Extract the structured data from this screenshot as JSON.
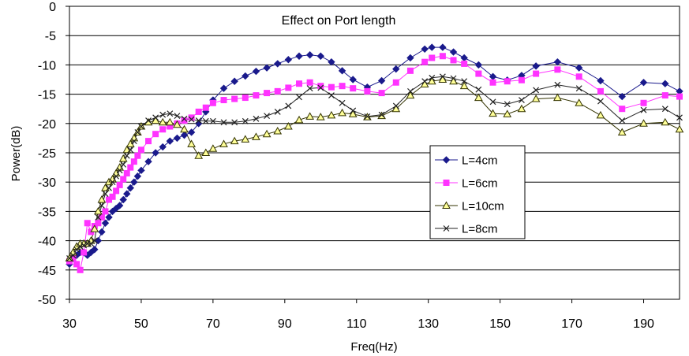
{
  "chart_data": {
    "type": "line",
    "title": "Effect on Port length",
    "xlabel": "Freq(Hz)",
    "ylabel": "Power(dB)",
    "xlim": [
      30,
      200
    ],
    "ylim": [
      -50,
      0
    ],
    "x_ticks": [
      "30",
      "50",
      "70",
      "90",
      "110",
      "130",
      "150",
      "170",
      "190"
    ],
    "y_ticks": [
      "0",
      "-5",
      "-10",
      "-15",
      "-20",
      "-25",
      "-30",
      "-35",
      "-40",
      "-45",
      "-50"
    ],
    "grid": "horizontal",
    "legend_position": "center-right",
    "series": [
      {
        "name": "L=4cm",
        "color": "#1a1a8c",
        "marker": "diamond",
        "x": [
          30,
          31,
          32,
          33,
          34,
          35,
          36,
          37,
          38,
          39,
          40,
          41,
          42,
          43,
          44,
          45,
          46,
          47,
          48,
          49,
          50,
          52,
          54,
          56,
          58,
          60,
          62,
          64,
          66,
          68,
          70,
          73,
          76,
          79,
          82,
          85,
          88,
          91,
          94,
          97,
          100,
          103,
          106,
          109,
          113,
          117,
          121,
          125,
          129,
          131,
          134,
          137,
          140,
          144,
          148,
          152,
          156,
          160,
          166,
          172,
          178,
          184,
          190,
          196,
          200
        ],
        "y": [
          -44,
          -43,
          -42.5,
          -42,
          -42,
          -42.5,
          -42,
          -41.5,
          -40,
          -38.5,
          -37,
          -36,
          -35,
          -34.5,
          -34,
          -33,
          -32,
          -31,
          -30,
          -29,
          -28,
          -26.5,
          -25,
          -24,
          -23,
          -22.5,
          -22,
          -21.5,
          -20,
          -18,
          -16,
          -14,
          -12.8,
          -11.9,
          -11.1,
          -10.5,
          -9.8,
          -9.1,
          -8.5,
          -8.3,
          -8.5,
          -9.5,
          -11,
          -12.5,
          -13.8,
          -12.7,
          -10.7,
          -8.8,
          -7.3,
          -7,
          -7,
          -7.8,
          -8.8,
          -10,
          -12,
          -12.6,
          -11.8,
          -10.2,
          -9.5,
          -10.5,
          -12.7,
          -15.4,
          -13,
          -13.2,
          -14.5
        ]
      },
      {
        "name": "L=6cm",
        "color": "#ff33ff",
        "marker": "square",
        "x": [
          30,
          31,
          32,
          33,
          34,
          35,
          36,
          37,
          38,
          39,
          40,
          41,
          42,
          43,
          44,
          45,
          46,
          47,
          48,
          49,
          50,
          52,
          54,
          56,
          58,
          60,
          62,
          64,
          66,
          68,
          70,
          73,
          76,
          79,
          82,
          85,
          88,
          91,
          94,
          97,
          100,
          103,
          106,
          109,
          113,
          117,
          121,
          125,
          129,
          131,
          134,
          137,
          140,
          144,
          148,
          152,
          156,
          160,
          166,
          172,
          178,
          184,
          190,
          196,
          200
        ],
        "y": [
          -43.5,
          -43,
          -44,
          -45,
          -42,
          -37,
          -38.5,
          -37.5,
          -37,
          -36,
          -35,
          -33,
          -32.5,
          -31.5,
          -30.5,
          -29.5,
          -28.5,
          -27.5,
          -26.5,
          -25.5,
          -24.5,
          -23,
          -21.8,
          -21,
          -20.5,
          -20,
          -19.5,
          -19,
          -18,
          -17.3,
          -16.5,
          -16,
          -15.8,
          -15.6,
          -15.2,
          -14.8,
          -14.5,
          -13.9,
          -13.2,
          -13,
          -13.6,
          -13.8,
          -13.6,
          -14,
          -14.5,
          -14.8,
          -13,
          -11,
          -9.5,
          -8.8,
          -8.5,
          -9.2,
          -9.8,
          -11.5,
          -13,
          -12.8,
          -12.6,
          -11.5,
          -10.8,
          -12,
          -14.5,
          -17.5,
          -16.5,
          -15.2,
          -15.4
        ]
      },
      {
        "name": "L=10cm",
        "color": "#333300",
        "marker": "triangle",
        "x": [
          30,
          31,
          32,
          33,
          34,
          35,
          36,
          37,
          38,
          39,
          40,
          41,
          42,
          43,
          44,
          45,
          46,
          47,
          48,
          49,
          50,
          52,
          54,
          56,
          58,
          60,
          62,
          64,
          66,
          68,
          70,
          73,
          76,
          79,
          82,
          85,
          88,
          91,
          94,
          97,
          100,
          103,
          106,
          109,
          113,
          117,
          121,
          125,
          129,
          131,
          134,
          137,
          140,
          144,
          148,
          152,
          156,
          160,
          166,
          172,
          178,
          184,
          190,
          196,
          200
        ],
        "y": [
          -43,
          -42,
          -41,
          -40.5,
          -40.5,
          -40.5,
          -40,
          -38,
          -35,
          -33,
          -31,
          -30,
          -29.5,
          -28.5,
          -27.5,
          -26,
          -24.5,
          -23.5,
          -22.5,
          -21.5,
          -20.5,
          -19.8,
          -19.5,
          -19.8,
          -19.8,
          -20.2,
          -21,
          -23.5,
          -25.5,
          -25,
          -24.3,
          -23.5,
          -23,
          -22.7,
          -22.3,
          -21.8,
          -21.3,
          -20.5,
          -19.4,
          -18.8,
          -18.9,
          -18.6,
          -18.2,
          -18.4,
          -18.9,
          -18.7,
          -17.5,
          -15.2,
          -13.3,
          -12.8,
          -12.5,
          -12.8,
          -13.6,
          -15.6,
          -18.3,
          -18.4,
          -17.5,
          -15.8,
          -15.6,
          -16.5,
          -18.6,
          -21.5,
          -20,
          -19.8,
          -21
        ]
      },
      {
        "name": "L=8cm",
        "color": "#222222",
        "marker": "x",
        "x": [
          30,
          31,
          32,
          33,
          34,
          35,
          36,
          37,
          38,
          39,
          40,
          41,
          42,
          43,
          44,
          45,
          46,
          47,
          48,
          49,
          50,
          52,
          54,
          56,
          58,
          60,
          62,
          64,
          66,
          68,
          70,
          73,
          76,
          79,
          82,
          85,
          88,
          91,
          94,
          97,
          100,
          103,
          106,
          109,
          113,
          117,
          121,
          125,
          129,
          131,
          134,
          137,
          140,
          144,
          148,
          152,
          156,
          160,
          166,
          172,
          178,
          184,
          190,
          196,
          200
        ],
        "y": [
          -43,
          -42.5,
          -41.5,
          -41,
          -40.8,
          -40.5,
          -40.5,
          -40,
          -36,
          -34,
          -32,
          -31,
          -30,
          -29,
          -28,
          -27,
          -25.5,
          -24.5,
          -23,
          -21.5,
          -20.5,
          -19.5,
          -19,
          -18.5,
          -18.3,
          -18.7,
          -19.2,
          -19.3,
          -19.5,
          -19.6,
          -19.6,
          -19.8,
          -19.8,
          -19.6,
          -19.2,
          -18.7,
          -18,
          -17,
          -15.5,
          -14,
          -13.9,
          -15.2,
          -16.5,
          -17.8,
          -18.8,
          -18.5,
          -17,
          -14.5,
          -12.8,
          -12.2,
          -12,
          -12.3,
          -12.8,
          -14.2,
          -16.3,
          -16.7,
          -16,
          -14.3,
          -13.4,
          -14,
          -16.2,
          -19.5,
          -17.7,
          -17.5,
          -19
        ]
      }
    ]
  }
}
